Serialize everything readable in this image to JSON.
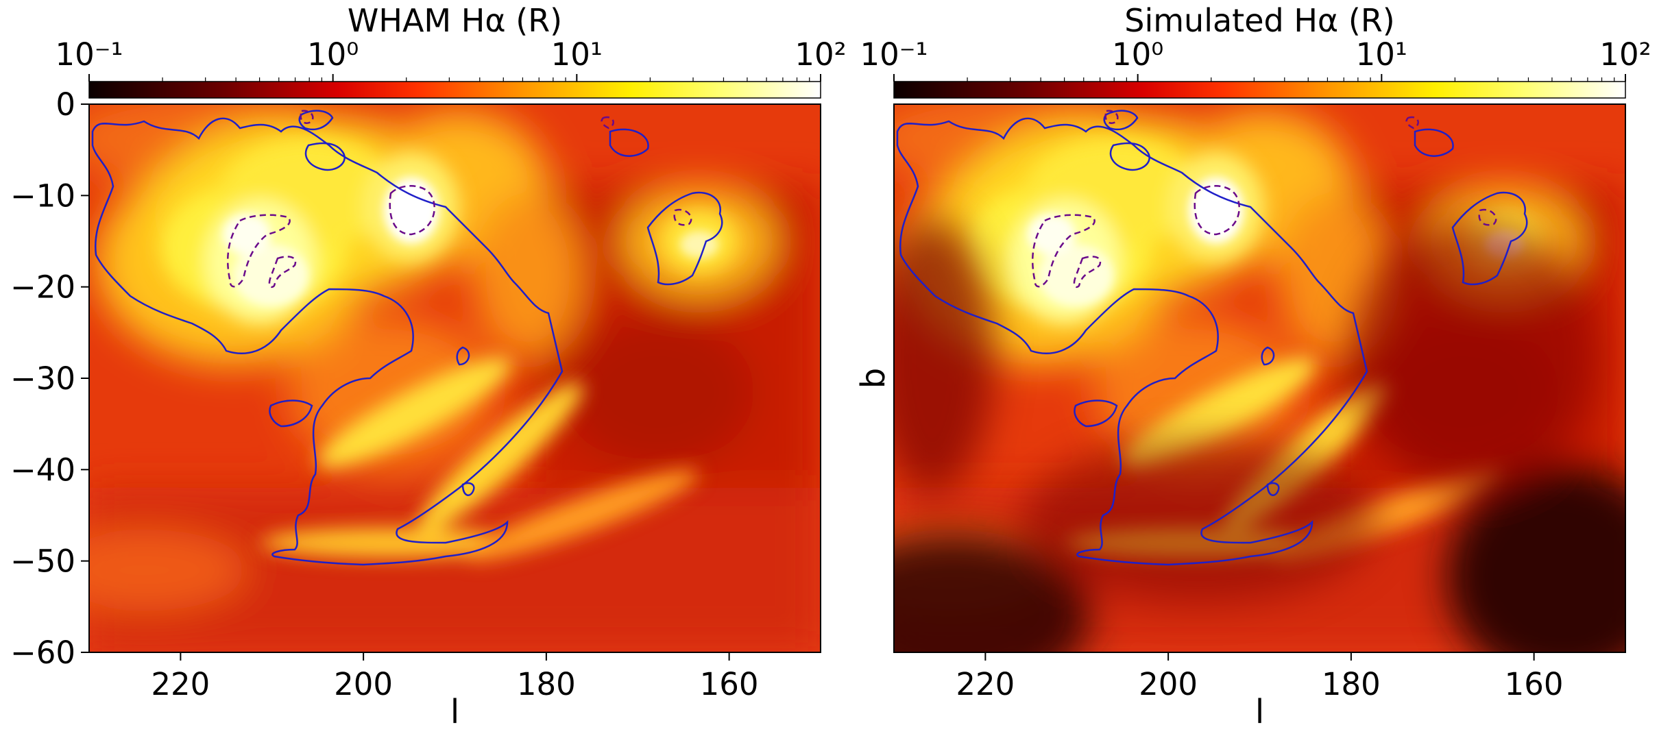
{
  "chart_data": [
    {
      "type": "heatmap",
      "title": "",
      "colorbar_label": "WHAM Hα (R)",
      "colorbar_scale": "log",
      "colorbar_range": [
        0.1,
        100
      ],
      "colorbar_ticks": [
        "10⁻¹",
        "10⁰",
        "10¹",
        "10²"
      ],
      "colormap": "hot",
      "xlabel": "l",
      "ylabel": "",
      "xlim": [
        230,
        150
      ],
      "ylim": [
        -60,
        0
      ],
      "x_ticks": [
        220,
        200,
        180,
        160
      ],
      "y_ticks": [
        0,
        -10,
        -20,
        -30,
        -40,
        -50,
        -60
      ],
      "contour_colors": {
        "solid": "#1f1fc8",
        "dashed": "#6a0a8a"
      }
    },
    {
      "type": "heatmap",
      "title": "",
      "colorbar_label": "Simulated Hα (R)",
      "colorbar_scale": "log",
      "colorbar_range": [
        0.1,
        100
      ],
      "colorbar_ticks": [
        "10⁻¹",
        "10⁰",
        "10¹",
        "10²"
      ],
      "colormap": "hot",
      "xlabel": "l",
      "ylabel": "b",
      "xlim": [
        230,
        150
      ],
      "ylim": [
        -60,
        0
      ],
      "x_ticks": [
        220,
        200,
        180,
        160
      ],
      "y_ticks": [],
      "contour_colors": {
        "solid": "#1f1fc8",
        "dashed": "#6a0a8a"
      }
    }
  ]
}
